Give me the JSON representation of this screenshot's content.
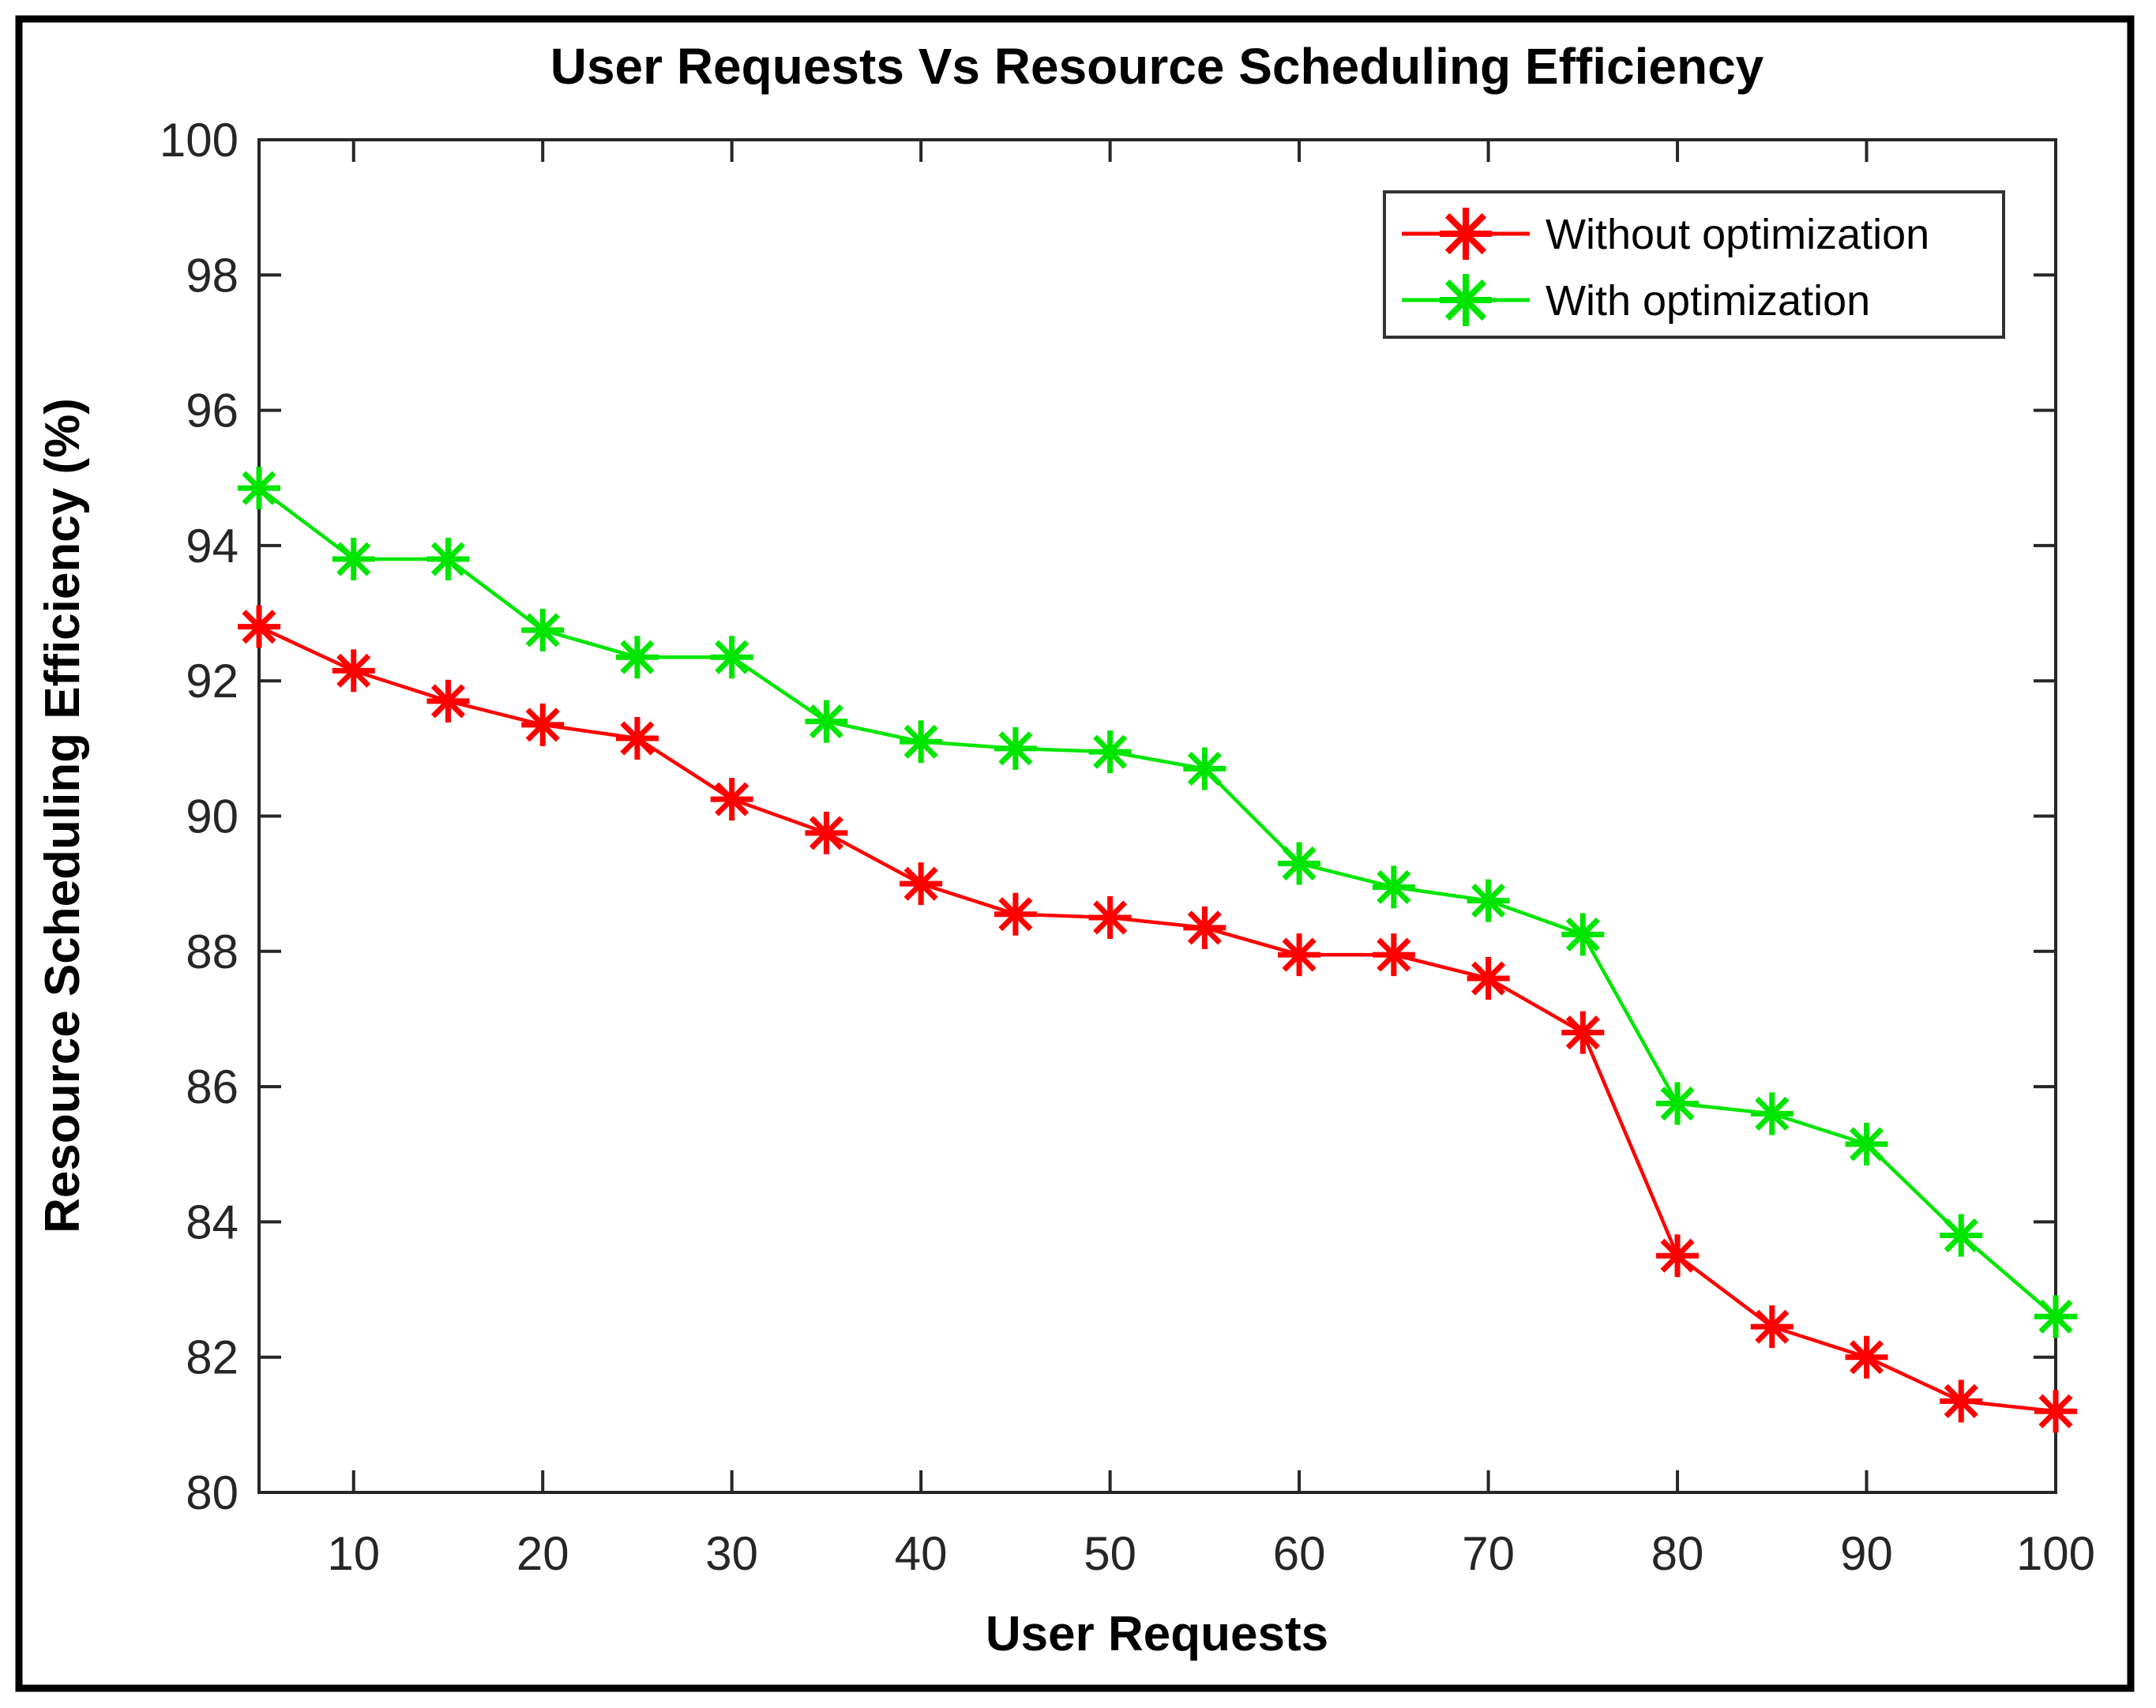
{
  "chart_data": {
    "type": "line",
    "title": "User Requests Vs Resource Scheduling Efficiency",
    "xlabel": "User Requests",
    "ylabel": "Resource Scheduling Efficiency (%)",
    "xlim": [
      5,
      100
    ],
    "ylim": [
      80,
      100
    ],
    "xticks": [
      10,
      20,
      30,
      40,
      50,
      60,
      70,
      80,
      90,
      100
    ],
    "yticks": [
      80,
      82,
      84,
      86,
      88,
      90,
      92,
      94,
      96,
      98,
      100
    ],
    "grid": false,
    "legend_position": "top-right",
    "x": [
      5,
      10,
      15,
      20,
      25,
      30,
      35,
      40,
      45,
      50,
      55,
      60,
      65,
      70,
      75,
      80,
      85,
      90,
      95,
      100
    ],
    "series": [
      {
        "name": "Without optimization",
        "color": "#ff0000",
        "marker": "asterisk",
        "values": [
          92.8,
          92.15,
          91.7,
          91.35,
          91.15,
          90.25,
          89.75,
          89.0,
          88.55,
          88.5,
          88.35,
          87.95,
          87.95,
          87.6,
          86.8,
          83.5,
          82.45,
          82.0,
          81.35,
          81.2
        ]
      },
      {
        "name": "With optimization",
        "color": "#00e500",
        "marker": "asterisk",
        "values": [
          94.85,
          93.8,
          93.8,
          92.75,
          92.35,
          92.35,
          91.4,
          91.1,
          91.0,
          90.95,
          90.7,
          89.3,
          88.95,
          88.75,
          88.25,
          85.75,
          85.6,
          85.15,
          83.8,
          82.6
        ]
      }
    ]
  },
  "legend": {
    "entries": [
      {
        "label": "Without optimization",
        "color": "#ff0000"
      },
      {
        "label": "With optimization",
        "color": "#00e500"
      }
    ]
  },
  "style": {
    "axis_color": "#262626",
    "tick_label_color": "#262626",
    "figure_border_color": "#000000",
    "background": "#ffffff"
  }
}
